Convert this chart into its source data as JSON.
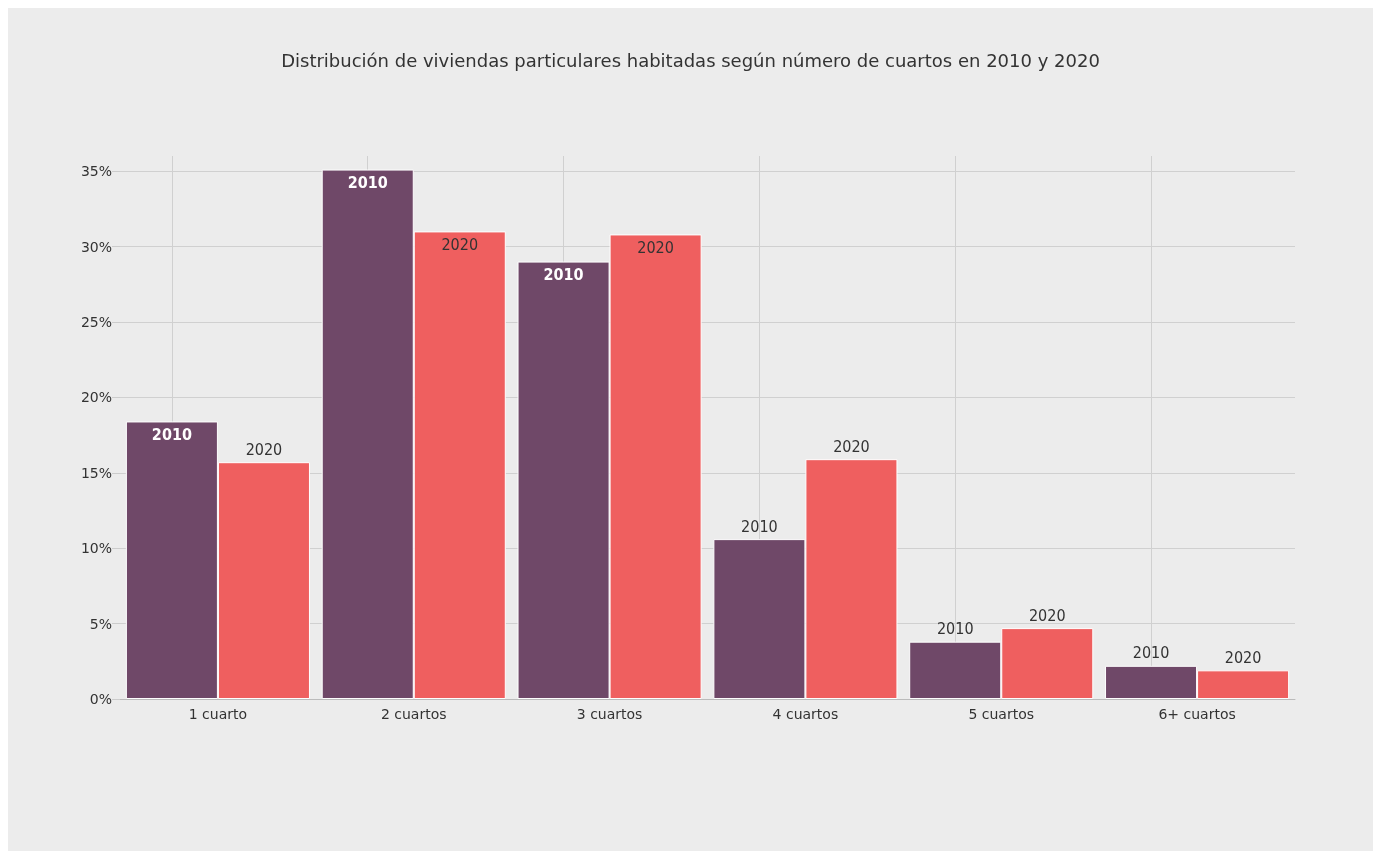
{
  "chart_data": {
    "type": "bar",
    "title": "Distribución de viviendas particulares habitadas según número de cuartos en 2010 y 2020",
    "categories": [
      "1 cuarto",
      "2 cuartos",
      "3 cuartos",
      "4 cuartos",
      "5 cuartos",
      "6+ cuartos"
    ],
    "series": [
      {
        "name": "2010",
        "color": "#6f4868",
        "values": [
          18.4,
          35.1,
          29.0,
          10.6,
          3.8,
          2.2
        ]
      },
      {
        "name": "2020",
        "color": "#ef5f5f",
        "values": [
          15.7,
          31.0,
          30.8,
          15.9,
          4.7,
          1.9
        ]
      }
    ],
    "ylim": [
      0,
      36
    ],
    "yticks": [
      {
        "value": 0,
        "label": "0%"
      },
      {
        "value": 5,
        "label": "5%"
      },
      {
        "value": 10,
        "label": "10%"
      },
      {
        "value": 15,
        "label": "15%"
      },
      {
        "value": 20,
        "label": "20%"
      },
      {
        "value": 25,
        "label": "25%"
      },
      {
        "value": 30,
        "label": "30%"
      },
      {
        "value": 35,
        "label": "35%"
      }
    ],
    "grid": true,
    "legend": false
  }
}
